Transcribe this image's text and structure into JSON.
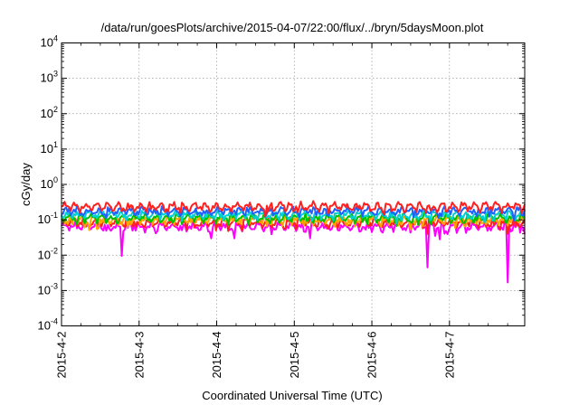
{
  "chart_data": {
    "type": "line",
    "title": "/data/run/goesPlots/archive/2015-04-07/22:00/flux/../bryn/5daysMoon.plot",
    "xlabel": "Coordinated Universal Time (UTC)",
    "ylabel": "cGy/day",
    "yscale": "log",
    "ylim": [
      0.0001,
      10000
    ],
    "xlim": [
      0,
      5.97
    ],
    "x_tick_labels": [
      "2015-4-2",
      "2015-4-3",
      "2015-4-4",
      "2015-4-5",
      "2015-4-6",
      "2015-4-7"
    ],
    "x_tick_values": [
      0,
      1,
      2,
      3,
      4,
      5
    ],
    "y_ticks": [
      {
        "value": 0.0001,
        "base": "10",
        "exp": "-4"
      },
      {
        "value": 0.001,
        "base": "10",
        "exp": "-3"
      },
      {
        "value": 0.01,
        "base": "10",
        "exp": "-2"
      },
      {
        "value": 0.1,
        "base": "10",
        "exp": "-1"
      },
      {
        "value": 1,
        "base": "10",
        "exp": "0"
      },
      {
        "value": 10,
        "base": "10",
        "exp": "1"
      },
      {
        "value": 100,
        "base": "10",
        "exp": "2"
      },
      {
        "value": 1000,
        "base": "10",
        "exp": "3"
      },
      {
        "value": 10000,
        "base": "10",
        "exp": "4"
      }
    ],
    "grid": true,
    "series": [
      {
        "color": "#ff00ff",
        "baseline": 0.065,
        "dips": [
          [
            0.78,
            0.0095
          ],
          [
            1.93,
            0.03
          ],
          [
            2.22,
            0.03
          ],
          [
            3.2,
            0.03
          ],
          [
            4.72,
            0.0045
          ],
          [
            4.82,
            0.035
          ],
          [
            4.88,
            0.028
          ],
          [
            5.75,
            0.0017
          ],
          [
            5.97,
            0.04
          ]
        ]
      },
      {
        "color": "#ff2020",
        "baseline": 0.085,
        "dips": [
          [
            4.72,
            0.04
          ],
          [
            5.75,
            0.04
          ]
        ]
      },
      {
        "color": "#ffa500",
        "baseline": 0.1,
        "dips": []
      },
      {
        "color": "#00c000",
        "baseline": 0.115,
        "dips": []
      },
      {
        "color": "#00d0d0",
        "baseline": 0.14,
        "dips": []
      },
      {
        "color": "#2060ff",
        "baseline": 0.18,
        "dips": []
      },
      {
        "color": "#ff2020",
        "baseline": 0.24,
        "dips": []
      }
    ]
  }
}
